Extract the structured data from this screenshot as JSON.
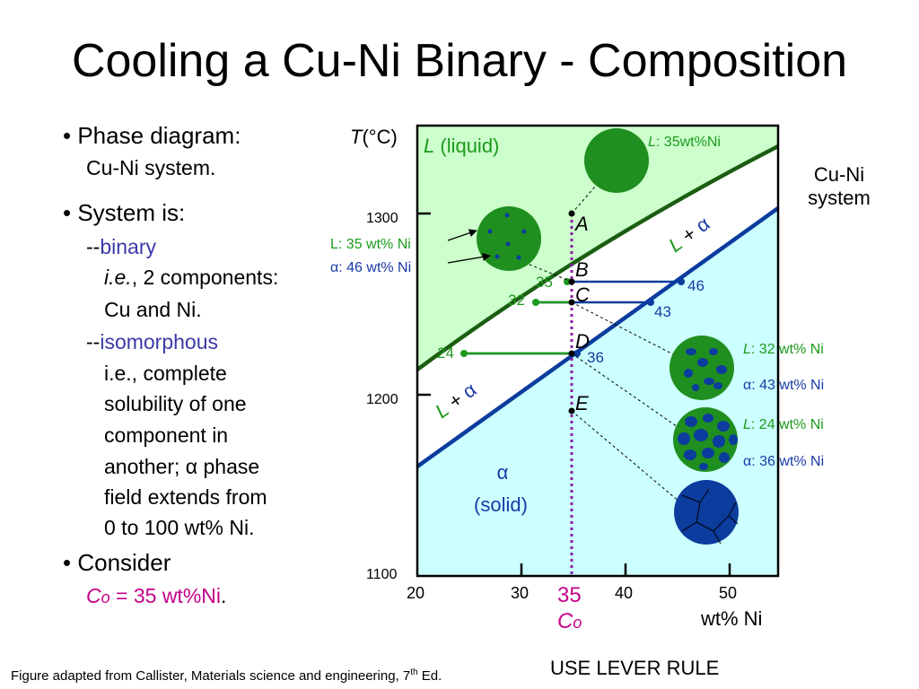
{
  "title": "Cooling a Cu-Ni Binary - Composition",
  "bullets": {
    "b1": "• Phase diagram:",
    "b1_sub": "Cu-Ni system.",
    "b2": "• System is:",
    "b2_dash1": "--",
    "b2_binary": "binary",
    "b2_ie": "i.e.",
    "b2_ie_rest": ", 2 components:",
    "b2_cu": "Cu and Ni.",
    "b2_dash2": "--",
    "b2_iso": "isomorphous",
    "b2_l1": "i.e., complete",
    "b2_l2": "solubility of one",
    "b2_l3": "component in",
    "b2_l4a": "another; ",
    "b2_alpha": "α",
    "b2_l4b": " phase",
    "b2_l5": "field extends from",
    "b2_l6": "0 to 100 wt% Ni.",
    "b3": "• Consider",
    "b3_c": "C",
    "b3_o": "o",
    "b3_eq": " = 35 wt%Ni",
    "b3_period": "."
  },
  "caption": {
    "text_a": "Figure adapted from Callister, Materials science and engineering, 7",
    "sup": "th",
    "text_b": " Ed."
  },
  "lever_rule": "USE LEVER RULE",
  "system_label": {
    "line1": "Cu-Ni",
    "line2": "system"
  },
  "axis": {
    "y_title_T": "T",
    "y_title_rest": "(°C)",
    "y_ticks": [
      {
        "label": "1300",
        "value": 1300
      },
      {
        "label": "1200",
        "value": 1200
      },
      {
        "label": "1100",
        "value": 1100
      }
    ],
    "x_ticks": [
      {
        "label": "20",
        "value": 20
      },
      {
        "label": "30",
        "value": 30
      },
      {
        "label": "40",
        "value": 40
      },
      {
        "label": "50",
        "value": 50
      }
    ],
    "x_title": "wt% Ni",
    "co_value": "35",
    "co_C": "C",
    "co_o": "o"
  },
  "regions": {
    "liquid_L": "L",
    "liquid_rest": " (liquid)",
    "two_phase_upper": "L + α",
    "two_phase_lower": "L + α",
    "solid_alpha": "α",
    "solid_word": "(solid)"
  },
  "points": [
    {
      "label": "A",
      "temp": 1297
    },
    {
      "label": "B",
      "temp": 1262
    },
    {
      "label": "C",
      "temp": 1249
    },
    {
      "label": "D",
      "temp": 1224
    },
    {
      "label": "E",
      "temp": 1193
    }
  ],
  "tie_lines": [
    {
      "point": "B",
      "liquid": 35,
      "solid": 46
    },
    {
      "point": "C",
      "liquid": 32,
      "solid": 43
    },
    {
      "point": "D",
      "liquid": 24,
      "solid": 36
    }
  ],
  "micro_labels": {
    "a_L": "L",
    "a_text": ": 35wt%Ni",
    "b_L": "L: 35 wt% Ni",
    "b_alpha": "α: 46 wt% Ni",
    "c_L_i": "L",
    "c_L": ": 32 wt% Ni",
    "c_alpha": "α: 43 wt% Ni",
    "d_L_i": "L",
    "d_L": ": 24 wt% Ni",
    "d_alpha": "α: 36 wt% Ni"
  },
  "colors": {
    "liquid_region": "#ccffcc",
    "solid_region": "#ccffff",
    "liquidus": "#1b5e12",
    "solidus": "#0b3c9e",
    "co_line": "#8b1fa3",
    "green_text": "#1c9a1c",
    "blue_text": "#1a3aa6",
    "purple": "#3a3aa6",
    "magenta": "#c4008a"
  }
}
